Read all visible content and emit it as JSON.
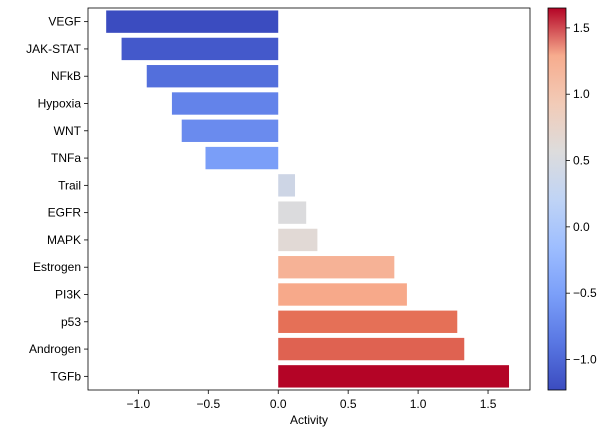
{
  "chart_data": {
    "type": "bar",
    "orientation": "horizontal",
    "categories": [
      "VEGF",
      "JAK-STAT",
      "NFkB",
      "Hypoxia",
      "WNT",
      "TNFa",
      "Trail",
      "EGFR",
      "MAPK",
      "Estrogen",
      "PI3K",
      "p53",
      "Androgen",
      "TGFb"
    ],
    "values": [
      -1.23,
      -1.12,
      -0.94,
      -0.76,
      -0.69,
      -0.52,
      0.12,
      0.2,
      0.28,
      0.83,
      0.92,
      1.28,
      1.33,
      1.65
    ],
    "title": "",
    "xlabel": "Activity",
    "ylabel": "",
    "xlim": [
      -1.36,
      1.8
    ],
    "xticks": [
      -1.0,
      -0.5,
      0.0,
      0.5,
      1.0,
      1.5
    ],
    "xtick_labels": [
      "−1.0",
      "−0.5",
      "0.0",
      "0.5",
      "1.0",
      "1.5"
    ],
    "grid": false,
    "colormap": "coolwarm",
    "colorbar": {
      "vmin": -1.23,
      "vmax": 1.65,
      "ticks": [
        -1.0,
        -0.5,
        0.0,
        0.5,
        1.0,
        1.5
      ],
      "tick_labels": [
        "−1.0",
        "−0.5",
        "0.0",
        "0.5",
        "1.0",
        "1.5"
      ]
    }
  }
}
